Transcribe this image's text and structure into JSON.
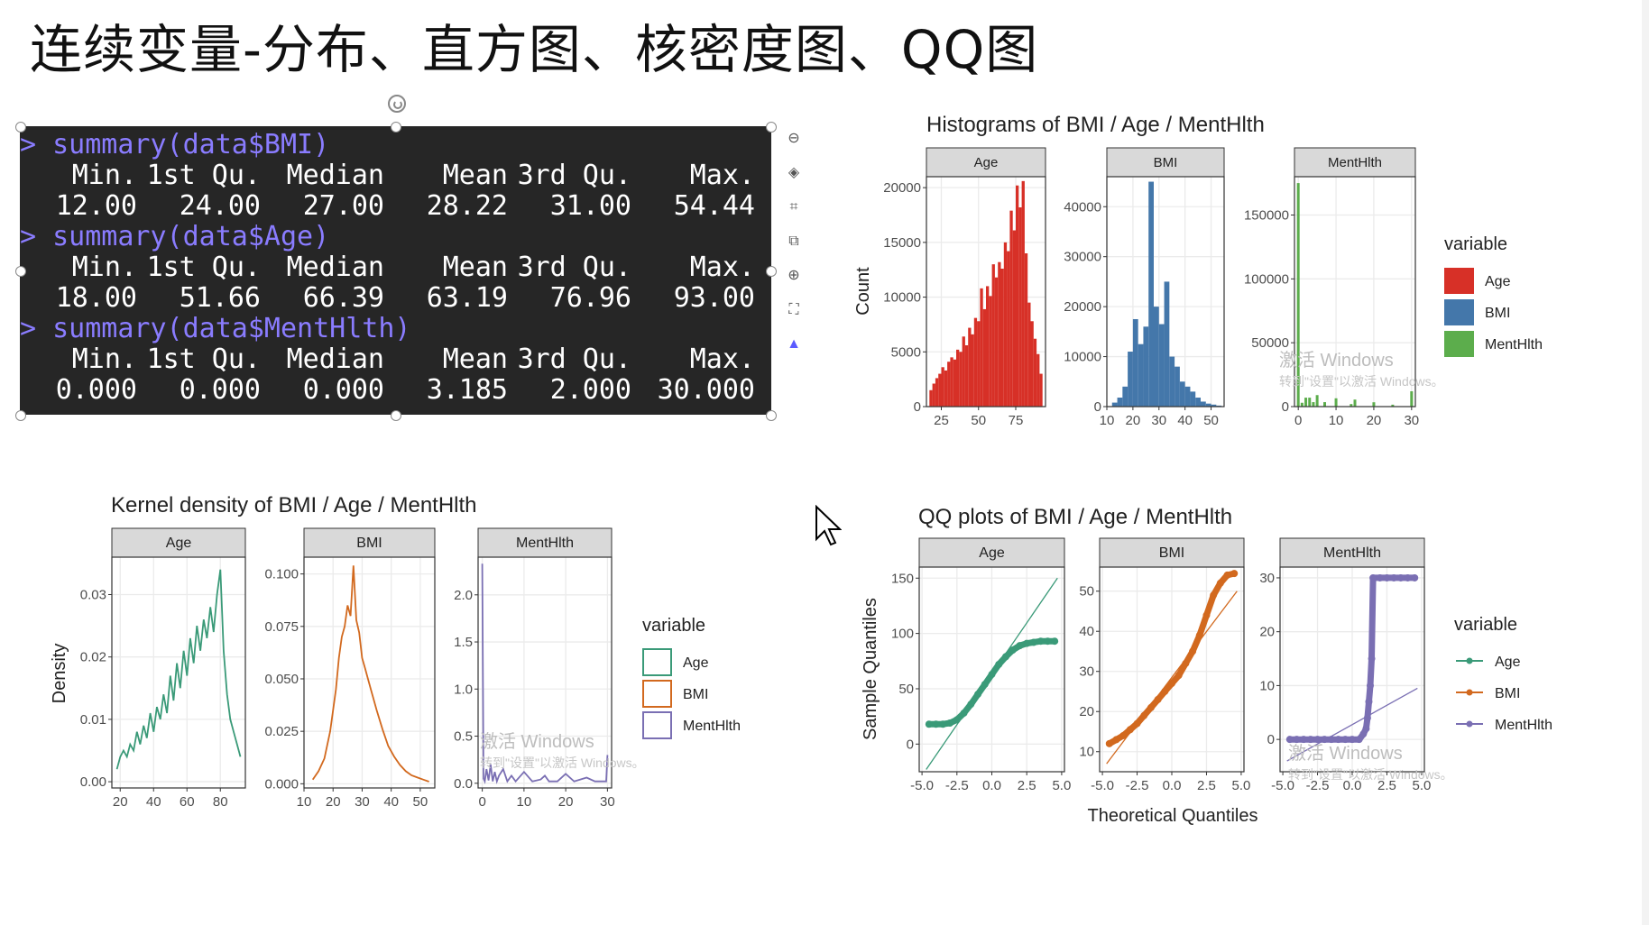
{
  "slide": {
    "title": "连续变量-分布、直方图、核密度图、QQ图"
  },
  "console": {
    "lines": [
      {
        "kind": "cmd",
        "text": "> summary(data$BMI)"
      },
      {
        "kind": "row",
        "cells": [
          "Min.",
          "1st Qu.",
          "Median",
          "Mean",
          "3rd Qu.",
          "Max."
        ]
      },
      {
        "kind": "row",
        "cells": [
          "12.00",
          "24.00",
          "27.00",
          "28.22",
          "31.00",
          "54.44"
        ]
      },
      {
        "kind": "cmd",
        "text": "> summary(data$Age)"
      },
      {
        "kind": "row",
        "cells": [
          "Min.",
          "1st Qu.",
          "Median",
          "Mean",
          "3rd Qu.",
          "Max."
        ]
      },
      {
        "kind": "row",
        "cells": [
          "18.00",
          "51.66",
          "66.39",
          "63.19",
          "76.96",
          "93.00"
        ]
      },
      {
        "kind": "cmd",
        "text": "> summary(data$MentHlth)"
      },
      {
        "kind": "row",
        "cells": [
          "Min.",
          "1st Qu.",
          "Median",
          "Mean",
          "3rd Qu.",
          "Max."
        ]
      },
      {
        "kind": "row",
        "cells": [
          "0.000",
          "0.000",
          "0.000",
          "3.185",
          "2.000",
          "30.000"
        ]
      }
    ]
  },
  "toolbar": {
    "icons": [
      "minus-icon",
      "layers-icon",
      "crop-icon",
      "copy-icon",
      "zoom-icon",
      "select-icon",
      "ai-icon"
    ]
  },
  "colors": {
    "age_hist": "#d73027",
    "bmi_hist": "#4477aa",
    "ment_hist": "#5cad4c",
    "age_dens": "#3a9a78",
    "bmi_dens": "#d2691e",
    "ment_dens": "#7a6fb3",
    "strip": "#d9d9d9",
    "panel_border": "#333333",
    "grid": "#ebebeb"
  },
  "watermark": {
    "line1": "激活 Windows",
    "line2": "转到\"设置\"以激活 Windows。"
  },
  "chart_data": [
    {
      "type": "bar",
      "title": "Histograms of BMI / Age / MentHlth",
      "ylabel": "Count",
      "legend": {
        "title": "variable",
        "entries": [
          "Age",
          "BMI",
          "MentHlth"
        ],
        "placement": "right"
      },
      "facets": [
        {
          "name": "Age",
          "xlim": [
            15,
            95
          ],
          "ylim": [
            0,
            21000
          ],
          "xticks": [
            25,
            50,
            75
          ],
          "yticks": [
            0,
            5000,
            10000,
            15000,
            20000
          ],
          "bins_x": [
            18,
            20,
            22,
            24,
            26,
            28,
            30,
            32,
            34,
            36,
            38,
            40,
            42,
            44,
            46,
            48,
            50,
            52,
            54,
            56,
            58,
            60,
            62,
            64,
            66,
            68,
            70,
            72,
            74,
            76,
            78,
            80,
            82,
            84,
            86,
            88,
            90,
            92
          ],
          "values": [
            1500,
            2100,
            2600,
            3000,
            3600,
            3300,
            4100,
            4500,
            4300,
            5200,
            5000,
            6400,
            5600,
            7200,
            6600,
            8100,
            7800,
            10800,
            8900,
            11000,
            10100,
            13000,
            11800,
            13200,
            12600,
            15000,
            14200,
            17900,
            16100,
            20200,
            18200,
            20600,
            14000,
            9500,
            7800,
            6200,
            4800,
            3000
          ]
        },
        {
          "name": "BMI",
          "xlim": [
            10,
            55
          ],
          "ylim": [
            0,
            46000
          ],
          "xticks": [
            10,
            20,
            30,
            40,
            50
          ],
          "yticks": [
            0,
            10000,
            20000,
            30000,
            40000
          ],
          "bins_x": [
            13,
            15,
            17,
            19,
            21,
            23,
            25,
            27,
            29,
            31,
            33,
            35,
            37,
            39,
            41,
            43,
            45,
            47,
            49,
            51,
            53
          ],
          "values": [
            800,
            1800,
            4000,
            11000,
            17500,
            12500,
            16000,
            45000,
            20000,
            16500,
            25000,
            10000,
            8000,
            5000,
            4000,
            3000,
            1800,
            1000,
            600,
            400,
            200
          ]
        },
        {
          "name": "MentHlth",
          "xlim": [
            -1,
            31
          ],
          "ylim": [
            0,
            180000
          ],
          "xticks": [
            0,
            10,
            20,
            30
          ],
          "yticks": [
            0,
            50000,
            100000,
            150000
          ],
          "bins_x": [
            0,
            1,
            2,
            3,
            4,
            5,
            7,
            10,
            14,
            15,
            20,
            25,
            30
          ],
          "values": [
            175000,
            3000,
            7000,
            7000,
            3500,
            9000,
            3500,
            6500,
            2000,
            5500,
            3400,
            1500,
            12000
          ]
        }
      ]
    },
    {
      "type": "line",
      "title": "Kernel density of BMI / Age / MentHlth",
      "ylabel": "Density",
      "legend": {
        "title": "variable",
        "entries": [
          "Age",
          "BMI",
          "MentHlth"
        ],
        "placement": "right"
      },
      "facets": [
        {
          "name": "Age",
          "xlim": [
            15,
            95
          ],
          "ylim": [
            -0.001,
            0.036
          ],
          "xticks": [
            20,
            40,
            60,
            80
          ],
          "yticks": [
            0.0,
            0.01,
            0.02,
            0.03
          ],
          "x": [
            18,
            20,
            22,
            24,
            26,
            28,
            30,
            32,
            34,
            36,
            38,
            40,
            42,
            44,
            46,
            48,
            50,
            52,
            54,
            56,
            58,
            60,
            62,
            64,
            66,
            68,
            70,
            72,
            74,
            76,
            78,
            80,
            82,
            84,
            86,
            88,
            90,
            92
          ],
          "y": [
            0.002,
            0.004,
            0.005,
            0.004,
            0.006,
            0.005,
            0.008,
            0.006,
            0.009,
            0.007,
            0.011,
            0.008,
            0.012,
            0.01,
            0.014,
            0.011,
            0.017,
            0.013,
            0.019,
            0.015,
            0.021,
            0.017,
            0.023,
            0.019,
            0.025,
            0.021,
            0.026,
            0.023,
            0.028,
            0.024,
            0.03,
            0.034,
            0.021,
            0.014,
            0.01,
            0.008,
            0.006,
            0.004
          ]
        },
        {
          "name": "BMI",
          "xlim": [
            10,
            55
          ],
          "ylim": [
            -0.002,
            0.108
          ],
          "xticks": [
            10,
            20,
            30,
            40,
            50
          ],
          "yticks": [
            0.0,
            0.025,
            0.05,
            0.075,
            0.1
          ],
          "x": [
            13,
            15,
            17,
            19,
            21,
            22,
            23,
            24,
            25,
            26,
            27,
            28,
            29,
            30,
            31,
            32,
            33,
            35,
            37,
            39,
            41,
            43,
            45,
            47,
            49,
            51,
            53
          ],
          "y": [
            0.002,
            0.006,
            0.012,
            0.025,
            0.045,
            0.06,
            0.07,
            0.075,
            0.085,
            0.08,
            0.104,
            0.078,
            0.072,
            0.06,
            0.055,
            0.05,
            0.045,
            0.035,
            0.026,
            0.018,
            0.013,
            0.009,
            0.006,
            0.004,
            0.003,
            0.002,
            0.001
          ]
        },
        {
          "name": "MentHlth",
          "xlim": [
            -1,
            31
          ],
          "ylim": [
            -0.05,
            2.4
          ],
          "xticks": [
            0,
            10,
            20,
            30
          ],
          "yticks": [
            0.0,
            0.5,
            1.0,
            1.5,
            2.0
          ],
          "x": [
            0,
            0.3,
            0.6,
            1,
            1.5,
            2,
            2.5,
            3,
            3.5,
            4,
            5,
            6,
            7,
            8,
            10,
            12,
            14,
            15,
            16,
            18,
            20,
            22,
            25,
            27,
            29,
            29.7,
            30
          ],
          "y": [
            2.33,
            0.05,
            0.02,
            0.15,
            0.03,
            0.2,
            0.02,
            0.12,
            0.02,
            0.08,
            0.15,
            0.02,
            0.08,
            0.02,
            0.12,
            0.02,
            0.04,
            0.08,
            0.02,
            0.02,
            0.1,
            0.02,
            0.06,
            0.02,
            0.02,
            0.02,
            0.3
          ]
        }
      ]
    },
    {
      "type": "scatter",
      "title": "QQ plots of BMI / Age / MentHlth",
      "xlabel": "Theoretical Quantiles",
      "ylabel": "Sample Quantiles",
      "legend": {
        "title": "variable",
        "entries": [
          "Age",
          "BMI",
          "MentHlth"
        ],
        "placement": "right"
      },
      "facets": [
        {
          "name": "Age",
          "xlim": [
            -5.2,
            5.2
          ],
          "ylim": [
            -25,
            160
          ],
          "xticks": [
            -5.0,
            -2.5,
            0.0,
            2.5,
            5.0
          ],
          "yticks": [
            0,
            50,
            100,
            150
          ],
          "x": [
            -4.5,
            -4,
            -3.5,
            -3,
            -2.5,
            -2,
            -1.5,
            -1,
            -0.5,
            0,
            0.5,
            1,
            1.5,
            2,
            2.5,
            3,
            3.5,
            4,
            4.5
          ],
          "y": [
            18,
            18,
            18,
            19,
            22,
            28,
            36,
            45,
            54,
            63,
            72,
            79,
            85,
            89,
            91,
            92,
            93,
            93,
            93
          ],
          "line": [
            [
              -4.7,
              -23
            ],
            [
              4.7,
              150
            ]
          ]
        },
        {
          "name": "BMI",
          "xlim": [
            -5.2,
            5.2
          ],
          "ylim": [
            5,
            56
          ],
          "xticks": [
            -5.0,
            -2.5,
            0.0,
            2.5,
            5.0
          ],
          "yticks": [
            10,
            20,
            30,
            40,
            50
          ],
          "x": [
            -4.5,
            -4,
            -3.5,
            -3,
            -2.5,
            -2,
            -1.5,
            -1,
            -0.5,
            0,
            0.5,
            1,
            1.5,
            2,
            2.5,
            3,
            3.5,
            4,
            4.5
          ],
          "y": [
            12,
            13,
            14,
            15.5,
            17,
            19,
            21,
            23,
            25,
            27,
            29,
            32,
            35,
            39,
            44,
            49,
            52,
            54,
            54.4
          ],
          "line": [
            [
              -4.7,
              7
            ],
            [
              4.7,
              50
            ]
          ]
        },
        {
          "name": "MentHlth",
          "xlim": [
            -5.2,
            5.2
          ],
          "ylim": [
            -6,
            32
          ],
          "xticks": [
            -5.0,
            -2.5,
            0.0,
            2.5,
            5.0
          ],
          "yticks": [
            0,
            10,
            20,
            30
          ],
          "x": [
            -4.5,
            -4,
            -3.5,
            -3,
            -2.5,
            -2,
            -1.5,
            -1,
            -0.5,
            0,
            0.5,
            0.8,
            1.0,
            1.1,
            1.2,
            1.3,
            1.4,
            1.5,
            2,
            2.5,
            3,
            3.5,
            4,
            4.5
          ],
          "y": [
            0,
            0,
            0,
            0,
            0,
            0,
            0,
            0,
            0,
            0,
            0,
            1,
            2,
            4,
            7,
            10,
            15,
            30,
            30,
            30,
            30,
            30,
            30,
            30
          ],
          "line": [
            [
              -4.7,
              -4
            ],
            [
              4.7,
              9.5
            ]
          ]
        }
      ]
    }
  ]
}
